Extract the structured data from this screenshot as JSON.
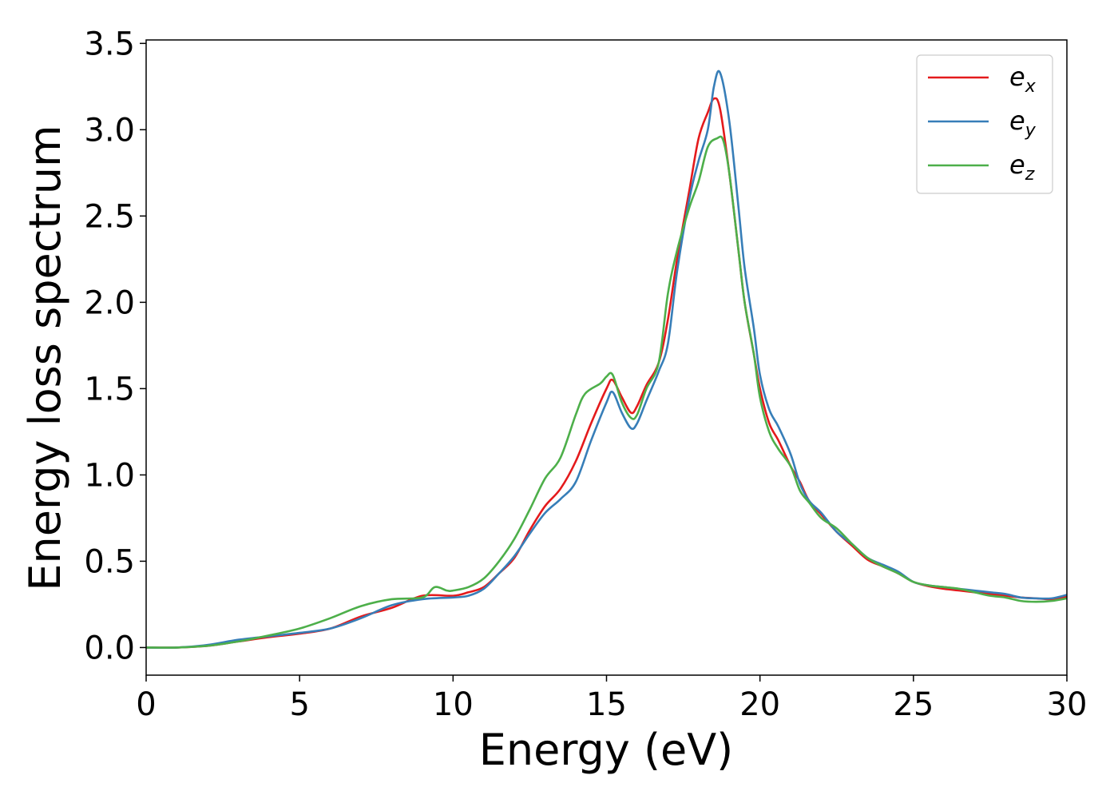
{
  "chart_data": {
    "type": "line",
    "title": "",
    "xlabel": "Energy (eV)",
    "ylabel": "Energy loss spectrum",
    "xlim": [
      0,
      30
    ],
    "ylim": [
      -0.16,
      3.52
    ],
    "xticks": [
      0,
      5,
      10,
      15,
      20,
      25,
      30
    ],
    "xtick_labels": [
      "0",
      "5",
      "10",
      "15",
      "20",
      "25",
      "30"
    ],
    "yticks": [
      0.0,
      0.5,
      1.0,
      1.5,
      2.0,
      2.5,
      3.0,
      3.5
    ],
    "ytick_labels": [
      "0.0",
      "0.5",
      "1.0",
      "1.5",
      "2.0",
      "2.5",
      "3.0",
      "3.5"
    ],
    "grid": false,
    "legend": "top-right",
    "series": [
      {
        "name": "e",
        "sub": "x",
        "color": "#e41a1c",
        "x": [
          0,
          1,
          2,
          3,
          4,
          5,
          6,
          7,
          8,
          9,
          10,
          10.5,
          11,
          11.5,
          12,
          12.5,
          13,
          13.5,
          14,
          14.5,
          15,
          15.2,
          15.5,
          15.8,
          16,
          16.3,
          16.7,
          17,
          17.3,
          17.7,
          18,
          18.3,
          18.5,
          18.7,
          19,
          19.3,
          19.5,
          19.8,
          20,
          20.3,
          20.6,
          21,
          21.3,
          21.6,
          22,
          22.5,
          23,
          23.5,
          24,
          24.5,
          25,
          25.5,
          26,
          26.5,
          27,
          27.5,
          28,
          28.5,
          29,
          29.5,
          30
        ],
        "y": [
          0,
          0,
          0.01,
          0.035,
          0.06,
          0.08,
          0.11,
          0.18,
          0.23,
          0.3,
          0.3,
          0.32,
          0.35,
          0.43,
          0.52,
          0.68,
          0.82,
          0.92,
          1.08,
          1.3,
          1.5,
          1.55,
          1.45,
          1.36,
          1.4,
          1.52,
          1.65,
          1.9,
          2.25,
          2.65,
          2.95,
          3.1,
          3.18,
          3.12,
          2.75,
          2.3,
          2.0,
          1.7,
          1.5,
          1.3,
          1.2,
          1.05,
          0.96,
          0.85,
          0.77,
          0.67,
          0.59,
          0.51,
          0.47,
          0.43,
          0.38,
          0.355,
          0.34,
          0.33,
          0.32,
          0.31,
          0.3,
          0.29,
          0.285,
          0.28,
          0.295
        ]
      },
      {
        "name": "e",
        "sub": "y",
        "color": "#377eb8",
        "x": [
          0,
          1,
          2,
          3,
          4,
          5,
          6,
          7,
          8,
          9,
          10,
          10.5,
          11,
          11.5,
          12,
          12.5,
          13,
          13.5,
          14,
          14.5,
          15,
          15.2,
          15.5,
          15.8,
          16,
          16.3,
          16.7,
          17,
          17.3,
          17.7,
          18,
          18.3,
          18.5,
          18.7,
          19,
          19.3,
          19.5,
          19.8,
          20,
          20.3,
          20.6,
          21,
          21.3,
          21.6,
          22,
          22.5,
          23,
          23.5,
          24,
          24.5,
          25,
          25.5,
          26,
          26.5,
          27,
          27.5,
          28,
          28.5,
          29,
          29.5,
          30
        ],
        "y": [
          0,
          0,
          0.015,
          0.045,
          0.065,
          0.085,
          0.11,
          0.17,
          0.245,
          0.28,
          0.29,
          0.3,
          0.34,
          0.43,
          0.53,
          0.66,
          0.78,
          0.86,
          0.96,
          1.2,
          1.42,
          1.48,
          1.36,
          1.27,
          1.3,
          1.43,
          1.6,
          1.76,
          2.18,
          2.6,
          2.82,
          3.0,
          3.25,
          3.33,
          3.05,
          2.55,
          2.2,
          1.85,
          1.58,
          1.38,
          1.28,
          1.12,
          0.95,
          0.85,
          0.78,
          0.67,
          0.6,
          0.52,
          0.48,
          0.44,
          0.38,
          0.36,
          0.35,
          0.34,
          0.33,
          0.32,
          0.31,
          0.29,
          0.285,
          0.285,
          0.305
        ]
      },
      {
        "name": "e",
        "sub": "z",
        "color": "#4daf4a",
        "x": [
          0,
          1,
          2,
          3,
          4,
          5,
          6,
          7,
          8,
          9,
          9.4,
          9.8,
          10,
          10.5,
          11,
          11.5,
          12,
          12.5,
          13,
          13.5,
          14,
          14.3,
          14.8,
          15,
          15.2,
          15.5,
          15.8,
          16,
          16.3,
          16.7,
          17,
          17.3,
          17.7,
          18,
          18.3,
          18.6,
          18.8,
          19,
          19.3,
          19.5,
          19.8,
          20,
          20.3,
          20.6,
          21,
          21.3,
          21.6,
          22,
          22.5,
          23,
          23.5,
          24,
          24.5,
          25,
          25.5,
          26,
          26.5,
          27,
          27.5,
          28,
          28.5,
          29,
          29.5,
          30
        ],
        "y": [
          0,
          0,
          0.01,
          0.035,
          0.07,
          0.11,
          0.17,
          0.24,
          0.28,
          0.29,
          0.35,
          0.33,
          0.33,
          0.35,
          0.4,
          0.5,
          0.63,
          0.8,
          0.98,
          1.1,
          1.35,
          1.47,
          1.53,
          1.57,
          1.58,
          1.42,
          1.33,
          1.35,
          1.5,
          1.65,
          2.05,
          2.3,
          2.55,
          2.7,
          2.9,
          2.95,
          2.94,
          2.75,
          2.3,
          2.0,
          1.7,
          1.45,
          1.25,
          1.15,
          1.05,
          0.91,
          0.84,
          0.75,
          0.69,
          0.6,
          0.52,
          0.47,
          0.43,
          0.38,
          0.36,
          0.35,
          0.34,
          0.32,
          0.3,
          0.29,
          0.27,
          0.265,
          0.27,
          0.285
        ]
      }
    ]
  }
}
